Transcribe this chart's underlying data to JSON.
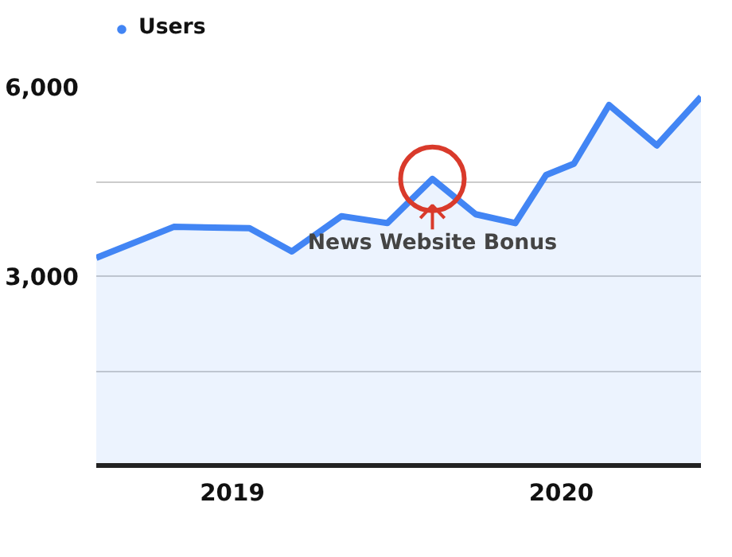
{
  "chart_data": {
    "type": "area",
    "x": [
      "2018-08-03",
      "2018-10-28",
      "2019-01-20",
      "2019-03-08",
      "2019-05-02",
      "2019-06-22",
      "2019-08-11",
      "2019-09-28",
      "2019-11-11",
      "2019-12-15",
      "2020-01-15",
      "2020-02-23",
      "2020-04-16",
      "2020-06-04"
    ],
    "series": [
      {
        "name": "Users",
        "color": "#4285f4",
        "values": [
          3290,
          3780,
          3760,
          3390,
          3950,
          3840,
          4540,
          3980,
          3840,
          4600,
          4780,
          5710,
          5070,
          5840
        ]
      }
    ],
    "xlim": [
      "2018-08-03",
      "2020-06-04"
    ],
    "xticks": [
      {
        "value": "2019-01-01",
        "label": "2019"
      },
      {
        "value": "2020-01-01",
        "label": "2020"
      }
    ],
    "ylim": [
      0,
      6000
    ],
    "yticks": [
      {
        "value": 0,
        "label": null
      },
      {
        "value": 1500,
        "label": null
      },
      {
        "value": 3000,
        "label": "3,000"
      },
      {
        "value": 4500,
        "label": null
      },
      {
        "value": 6000,
        "label": "6,000"
      }
    ],
    "grid": "y",
    "legend": "top left",
    "marker": "none",
    "annotations": [
      {
        "text": "News Website Bonus",
        "x": "2019-08-11",
        "y": 4540
      }
    ]
  }
}
